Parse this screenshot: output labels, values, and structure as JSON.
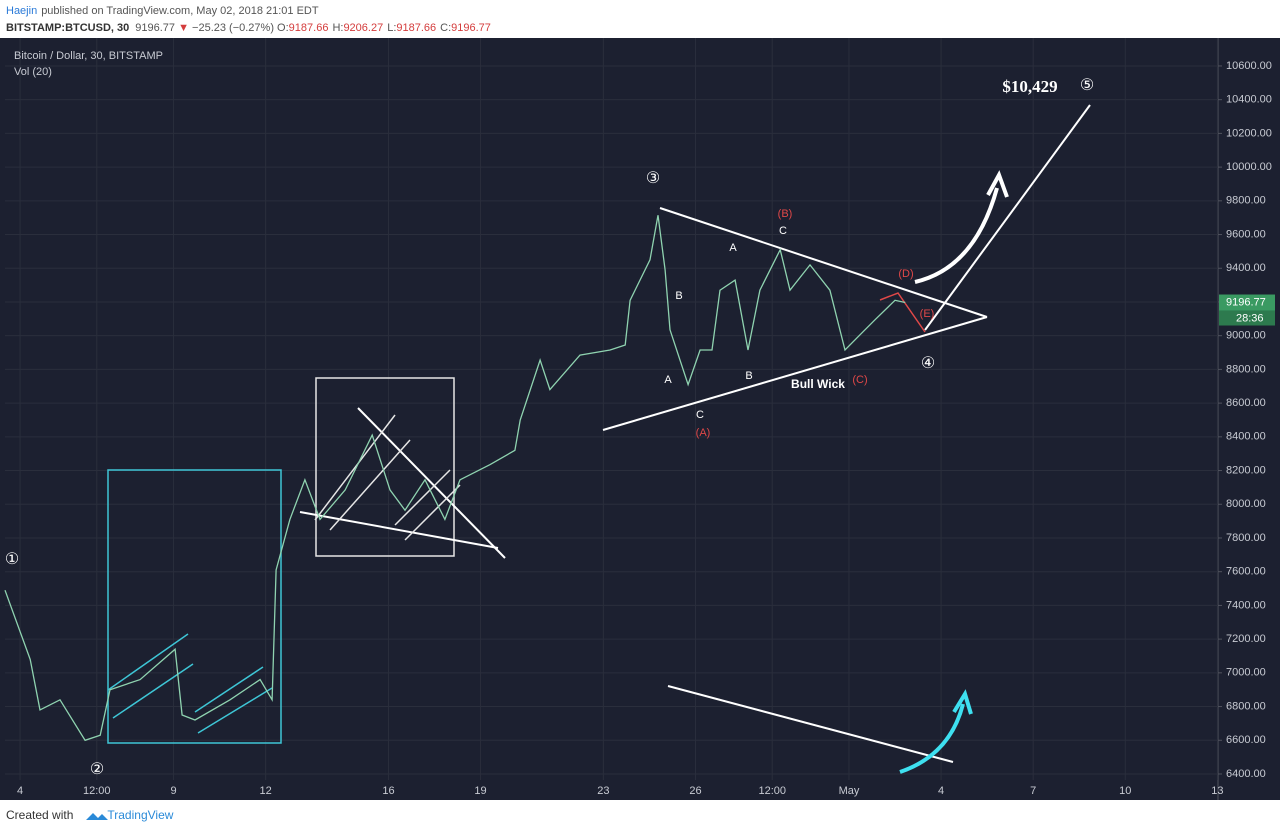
{
  "header": {
    "author": "Haejin",
    "published": "published on TradingView.com, May 02, 2018 21:01 EDT",
    "symbol": "BITSTAMP:BTCUSD, 30",
    "price": "9196.77",
    "direction": "▼",
    "change": "−25.23 (−0.27%)",
    "ohlc": [
      {
        "label": "O:",
        "value": "9187.66"
      },
      {
        "label": "H:",
        "value": "9206.27"
      },
      {
        "label": "L:",
        "value": "9187.66"
      },
      {
        "label": "C:",
        "value": "9196.77"
      }
    ]
  },
  "chart_data": {
    "type": "line",
    "title": "Bitcoin / Dollar, 30, BITSTAMP",
    "subtitle": "Vol (20)",
    "color": "#8fd3b0",
    "x": [
      3.51,
      4.33,
      4.65,
      5.3,
      6.12,
      6.61,
      6.93,
      7.91,
      9.05,
      9.28,
      9.7,
      10.84,
      11.82,
      12.21,
      12.34,
      12.79,
      13.28,
      13.77,
      14.59,
      15.47,
      16.05,
      16.54,
      17.19,
      17.84,
      18.33,
      19.31,
      20.12,
      20.29,
      20.94,
      21.26,
      22.24,
      23.22,
      23.71,
      23.87,
      24.52,
      24.78,
      25.01,
      25.17,
      25.76,
      26.15,
      26.54,
      26.8,
      27.29,
      27.71,
      28.1,
      28.76,
      29.08,
      29.73,
      30.38,
      30.87,
      31.36,
      31.85,
      32.5,
      32.83
    ],
    "values": [
      7490,
      7080,
      6780,
      6840,
      6600,
      6630,
      6900,
      6960,
      7140,
      6750,
      6720,
      6840,
      6960,
      6840,
      7610,
      7910,
      8145,
      7910,
      8085,
      8410,
      8085,
      7965,
      8145,
      7910,
      8145,
      8235,
      8320,
      8500,
      8855,
      8680,
      8885,
      8915,
      8945,
      9210,
      9450,
      9715,
      9390,
      9035,
      8710,
      8915,
      8915,
      9270,
      9330,
      8915,
      9270,
      9510,
      9270,
      9420,
      9270,
      8915,
      9005,
      9095,
      9210,
      9196.77
    ],
    "xlim": [
      3.51,
      43.02
    ],
    "xticks": [
      4,
      {
        "value": 6.5,
        "label": "12:00"
      },
      9,
      12,
      16,
      19,
      23,
      26,
      {
        "value": 28.5,
        "label": "12:00"
      },
      {
        "value": 31,
        "label": "May"
      },
      {
        "value": 34,
        "label": "4"
      },
      {
        "value": 37,
        "label": "7"
      },
      {
        "value": 40,
        "label": "10"
      },
      {
        "value": 43,
        "label": "13"
      }
    ],
    "ylim": [
      6305,
      10754
    ],
    "yticks": [
      {
        "value": 6400,
        "label": "6400.00"
      },
      {
        "value": 6600,
        "label": "6600.00"
      },
      {
        "value": 6800,
        "label": "6800.00"
      },
      {
        "value": 7000,
        "label": "7000.00"
      },
      {
        "value": 7200,
        "label": "7200.00"
      },
      {
        "value": 7400,
        "label": "7400.00"
      },
      {
        "value": 7600,
        "label": "7600.00"
      },
      {
        "value": 7800,
        "label": "7800.00"
      },
      {
        "value": 8000,
        "label": "8000.00"
      },
      {
        "value": 8200,
        "label": "8200.00"
      },
      {
        "value": 8400,
        "label": "8400.00"
      },
      {
        "value": 8600,
        "label": "8600.00"
      },
      {
        "value": 8800,
        "label": "8800.00"
      },
      {
        "value": 9000,
        "label": "9000.00"
      },
      {
        "value": 9200,
        "label": "9200.00"
      },
      {
        "value": 9400,
        "label": "9400.00"
      },
      {
        "value": 9600,
        "label": "9600.00"
      },
      {
        "value": 9800,
        "label": "9800.00"
      },
      {
        "value": 10000,
        "label": "10000.00"
      },
      {
        "value": 10200,
        "label": "10200.00"
      },
      {
        "value": 10400,
        "label": "10400.00"
      },
      {
        "value": 10600,
        "label": "10600.00"
      }
    ],
    "grid": true,
    "last_price": 9196.77,
    "countdown": "28:36",
    "annotations": [
      {
        "text": "$10,429",
        "color": "#ffffff"
      },
      {
        "text": "⑤",
        "color": "#ffffff"
      },
      {
        "text": "③",
        "color": "#ffffff"
      },
      {
        "text": "(B)",
        "color": "#e04848"
      },
      {
        "text": "C",
        "color": "#ffffff"
      },
      {
        "text": "A",
        "color": "#ffffff"
      },
      {
        "text": "B",
        "color": "#ffffff"
      },
      {
        "text": "(D)",
        "color": "#e04848"
      },
      {
        "text": "(E)",
        "color": "#e04848"
      },
      {
        "text": "④",
        "color": "#ffffff"
      },
      {
        "text": "A",
        "color": "#ffffff"
      },
      {
        "text": "B",
        "color": "#ffffff"
      },
      {
        "text": "Bull Wick",
        "color": "#ffffff"
      },
      {
        "text": "(C)",
        "color": "#e04848"
      },
      {
        "text": "C",
        "color": "#ffffff"
      },
      {
        "text": "(A)",
        "color": "#e04848"
      },
      {
        "text": "①",
        "color": "#ffffff"
      },
      {
        "text": "②",
        "color": "#ffffff"
      }
    ]
  },
  "footer": {
    "created": "Created with",
    "brand": "TradingView"
  }
}
